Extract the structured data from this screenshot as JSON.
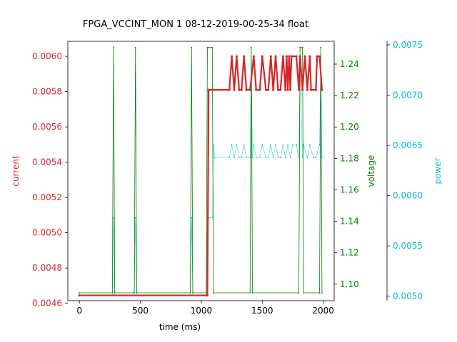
{
  "chart_data": {
    "type": "line",
    "title": "FPGA_VCCINT_MON   1   08-12-2019-00-25-34   float",
    "xlabel": "time (ms)",
    "xlim": [
      -95,
      2090
    ],
    "xticks": [
      0,
      500,
      1000,
      1500,
      2000
    ],
    "grid": false,
    "axes": [
      {
        "id": "current",
        "label": "current",
        "side": "left",
        "color": "#d62728",
        "ylim": [
          0.004615,
          0.006085
        ],
        "ticks": [
          0.0046,
          0.0048,
          0.005,
          0.0052,
          0.0054,
          0.0056,
          0.0058,
          0.006
        ],
        "tick_labels": [
          "0.0046",
          "0.0048",
          "0.0050",
          "0.0052",
          "0.0054",
          "0.0056",
          "0.0058",
          "0.0060"
        ]
      },
      {
        "id": "voltage",
        "label": "voltage",
        "side": "right",
        "color": "#008000",
        "ylim": [
          1.0895,
          1.2545
        ],
        "ticks": [
          1.1,
          1.12,
          1.14,
          1.16,
          1.18,
          1.2,
          1.22,
          1.24
        ],
        "tick_labels": [
          "1.10",
          "1.12",
          "1.14",
          "1.16",
          "1.18",
          "1.20",
          "1.22",
          "1.24"
        ]
      },
      {
        "id": "power",
        "label": "power",
        "side": "right-outer",
        "color": "#00bfbf",
        "ylim": [
          0.004955,
          0.007535
        ],
        "ticks": [
          0.005,
          0.0055,
          0.006,
          0.0065,
          0.007,
          0.0075
        ],
        "tick_labels": [
          "0.0050",
          "0.0055",
          "0.0060",
          "0.0065",
          "0.0070",
          "0.0075"
        ]
      }
    ],
    "series": [
      {
        "axis": "current",
        "color": "#d62728",
        "x": [
          0,
          1050,
          1060,
          1100,
          1230,
          1250,
          1270,
          1290,
          1310,
          1330,
          1350,
          1370,
          1400,
          1430,
          1450,
          1480,
          1500,
          1530,
          1550,
          1570,
          1590,
          1610,
          1630,
          1650,
          1670,
          1690,
          1700,
          1710,
          1720,
          1730,
          1740,
          1750,
          1780,
          1800,
          1810,
          1830,
          1850,
          1870,
          1890,
          1900,
          1940,
          1950,
          1970,
          1990
        ],
        "y": [
          0.004645,
          0.004645,
          0.00581,
          0.00581,
          0.00581,
          0.006,
          0.00581,
          0.006,
          0.00581,
          0.00581,
          0.006,
          0.00581,
          0.00581,
          0.006,
          0.00581,
          0.00581,
          0.006,
          0.00581,
          0.00581,
          0.006,
          0.00581,
          0.006,
          0.00581,
          0.00581,
          0.006,
          0.00581,
          0.006,
          0.00581,
          0.006,
          0.00581,
          0.006,
          0.006,
          0.006,
          0.00581,
          0.006,
          0.00581,
          0.006,
          0.00581,
          0.006,
          0.00581,
          0.00581,
          0.006,
          0.006,
          0.00581
        ]
      },
      {
        "axis": "voltage",
        "color": "#008000",
        "x": [
          0,
          270,
          280,
          290,
          450,
          460,
          470,
          910,
          920,
          930,
          1040,
          1050,
          1060,
          1090,
          1100,
          1400,
          1410,
          1420,
          1800,
          1810,
          1830,
          1840,
          1970,
          1980,
          1990
        ],
        "y": [
          1.0945,
          1.0945,
          1.2505,
          1.0945,
          1.0945,
          1.2505,
          1.0945,
          1.0945,
          1.2505,
          1.0945,
          1.0945,
          1.2505,
          1.2505,
          1.2505,
          1.0945,
          1.0945,
          1.2505,
          1.0945,
          1.0945,
          1.2505,
          1.2505,
          1.0945,
          1.0945,
          1.2505,
          1.0945
        ]
      },
      {
        "axis": "power",
        "color": "#00bfbf",
        "x": [
          0,
          270,
          280,
          290,
          450,
          460,
          470,
          910,
          920,
          930,
          1040,
          1050,
          1060,
          1090,
          1100,
          1110,
          1230,
          1250,
          1270,
          1290,
          1310,
          1330,
          1350,
          1370,
          1400,
          1410,
          1420,
          1430,
          1450,
          1480,
          1500,
          1530,
          1550,
          1570,
          1590,
          1610,
          1630,
          1650,
          1670,
          1690,
          1710,
          1730,
          1750,
          1780,
          1800,
          1810,
          1830,
          1840,
          1870,
          1890,
          1920,
          1940,
          1970,
          1980,
          1990
        ],
        "y": [
          0.00501,
          0.00501,
          0.00578,
          0.00501,
          0.00501,
          0.00578,
          0.00501,
          0.00501,
          0.00578,
          0.00501,
          0.00501,
          0.00578,
          0.00578,
          0.00578,
          0.006505,
          0.00638,
          0.00638,
          0.006505,
          0.00638,
          0.006505,
          0.00638,
          0.00638,
          0.006505,
          0.00638,
          0.00638,
          0.00727,
          0.00638,
          0.006505,
          0.00638,
          0.00638,
          0.006505,
          0.00638,
          0.00638,
          0.006505,
          0.00638,
          0.006505,
          0.00638,
          0.00638,
          0.006505,
          0.00638,
          0.006505,
          0.00638,
          0.006505,
          0.006505,
          0.00638,
          0.00727,
          0.00638,
          0.006505,
          0.00638,
          0.006505,
          0.00638,
          0.00638,
          0.006505,
          0.00727,
          0.00638
        ]
      }
    ]
  }
}
